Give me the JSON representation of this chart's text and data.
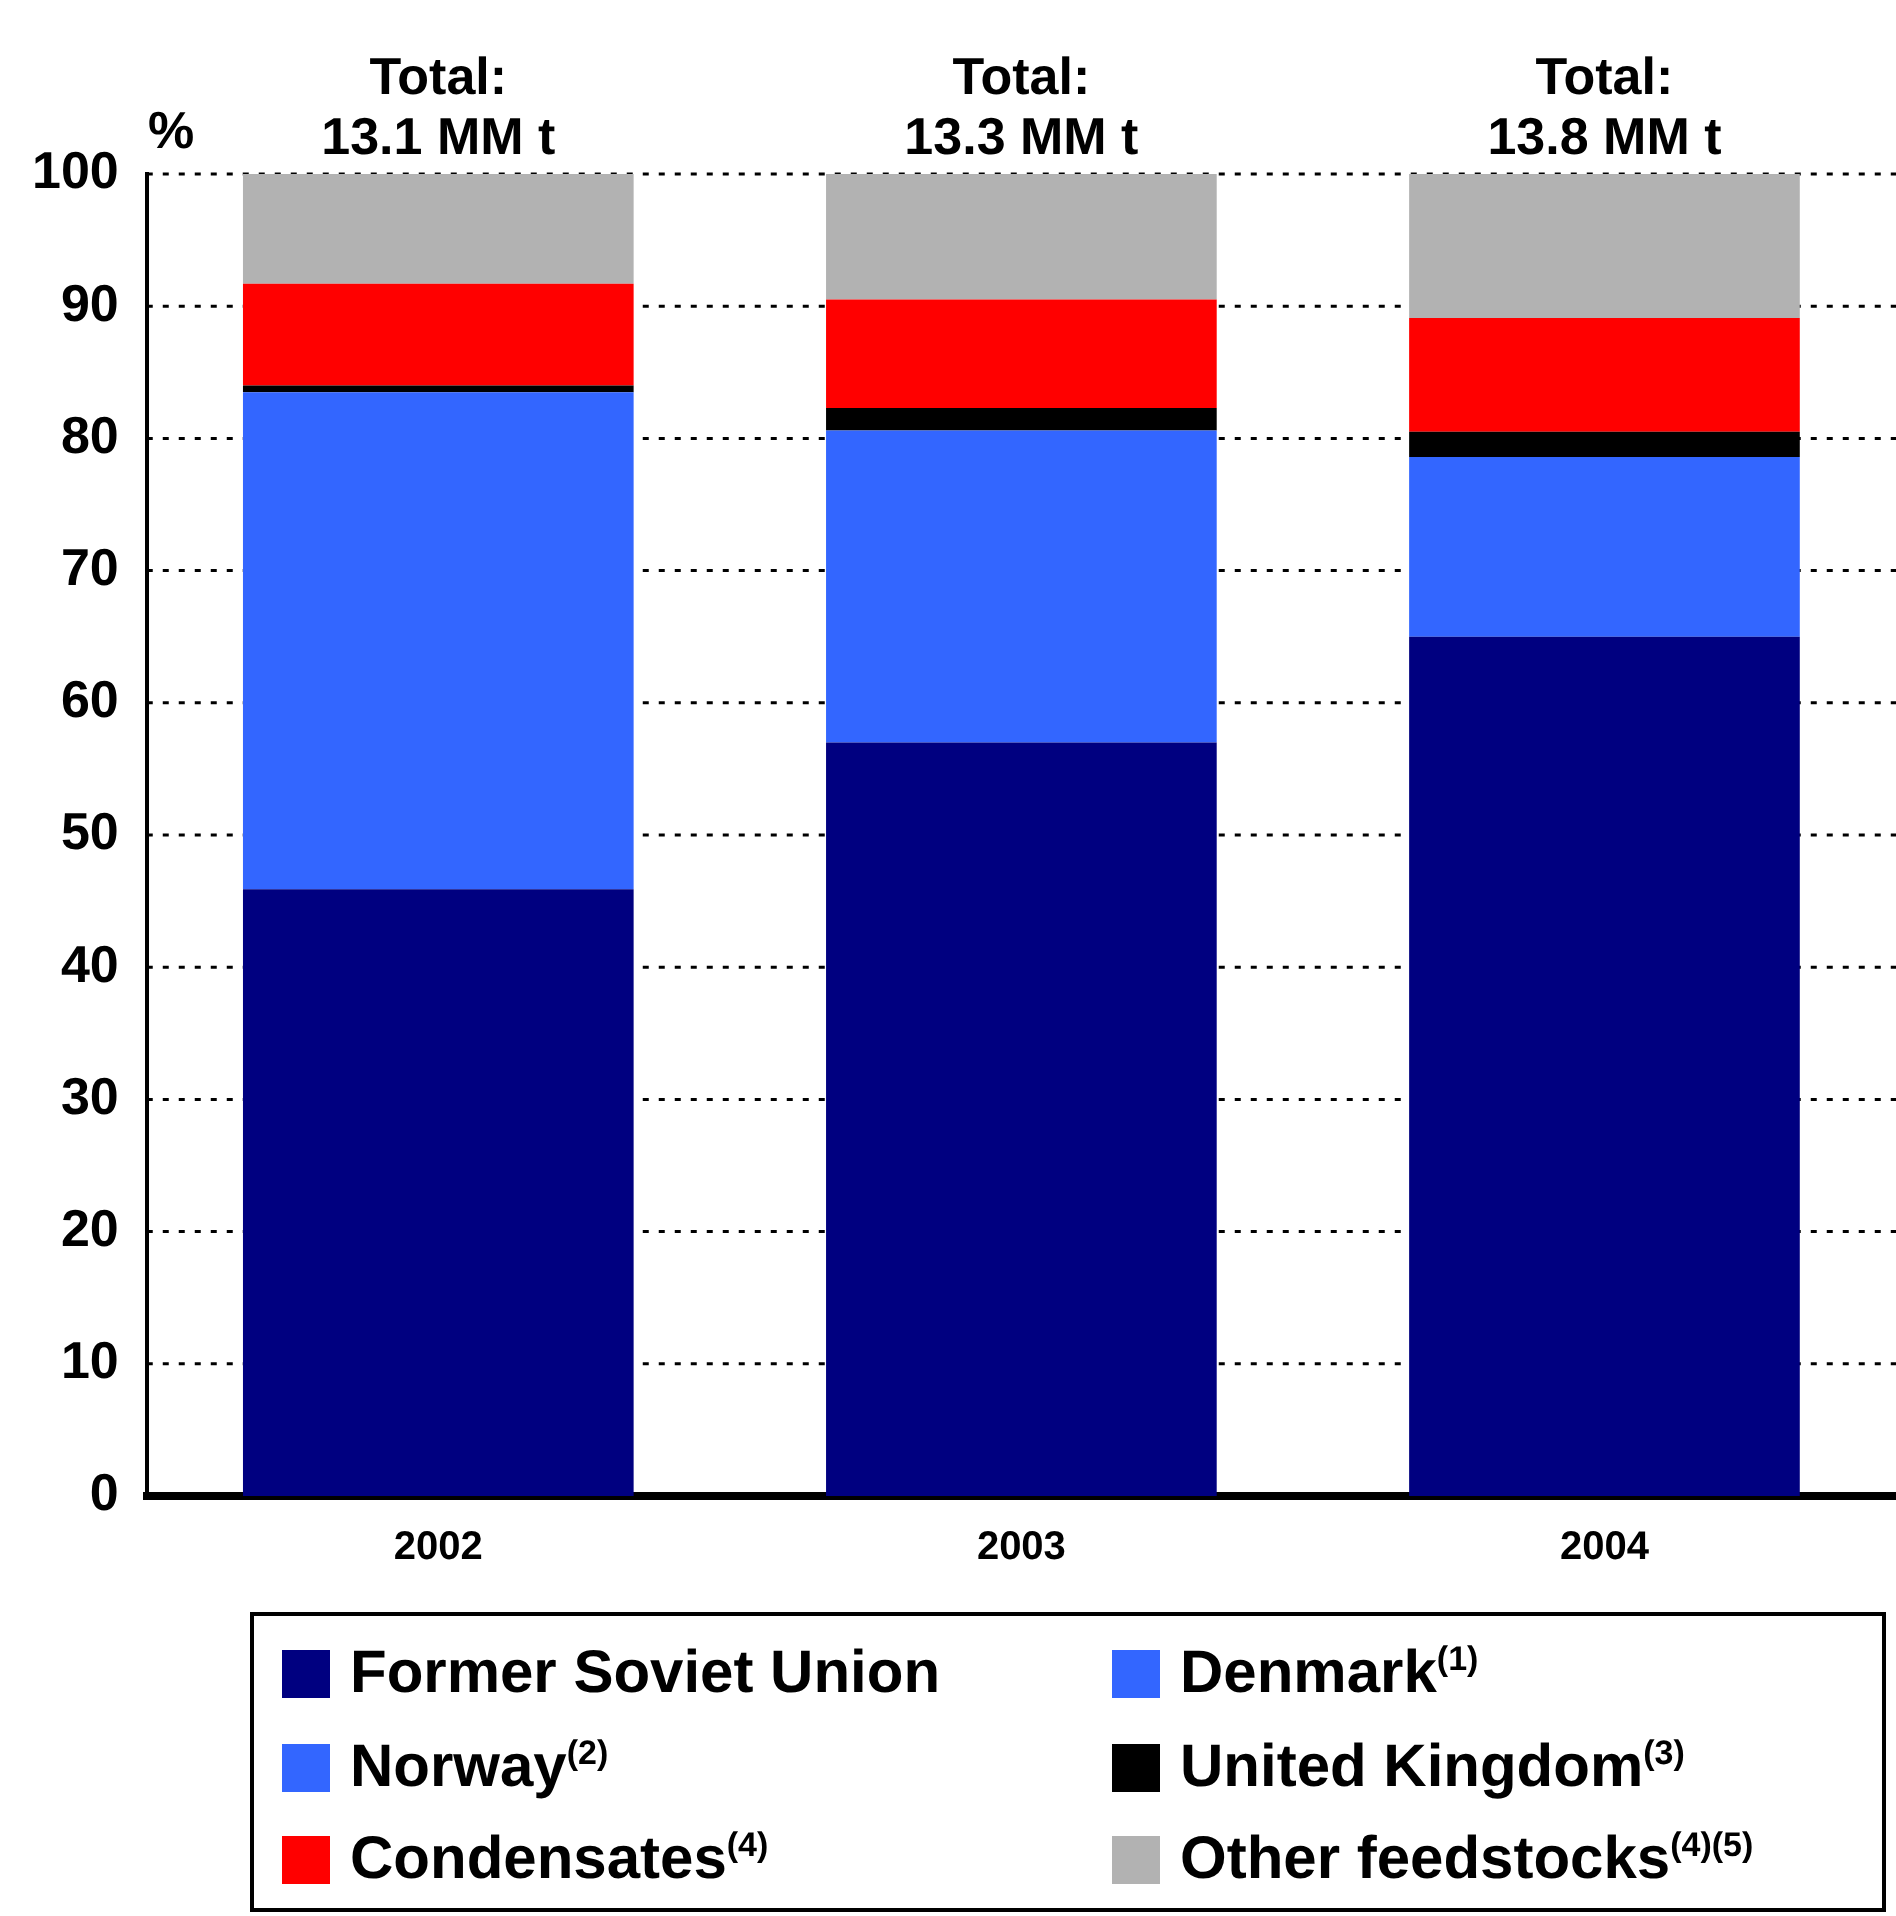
{
  "chart_data": {
    "type": "bar",
    "stacked": true,
    "ylabel": "%",
    "categories": [
      "2002",
      "2003",
      "2004"
    ],
    "series": [
      {
        "name": "Former Soviet Union",
        "color": "#000080",
        "values": [
          45.9,
          57.0,
          65.0
        ]
      },
      {
        "name": "Denmark$^{(1)}$",
        "color": "#3366ff",
        "values": [
          null,
          null,
          null
        ]
      },
      {
        "name": "Norway$^{(2)}$",
        "color": "#3366ff",
        "values": [
          37.6,
          23.6,
          13.6
        ]
      },
      {
        "name": "United Kingdom$^{(3)}$",
        "color": "#000000",
        "values": [
          0.5,
          1.7,
          1.9
        ]
      },
      {
        "name": "Condensates$^{(4)}$",
        "color": "#ff0000",
        "values": [
          7.7,
          8.2,
          8.6
        ]
      },
      {
        "name": "Other feedstocks$^{(4)(5)}$",
        "color": "#b2b2b2",
        "values": [
          8.3,
          9.5,
          10.9
        ]
      }
    ],
    "annotations": [
      {
        "text": "Total:\n13.1 MM t",
        "x": "2002",
        "y": 100
      },
      {
        "text": "Total:\n13.3 MM t",
        "x": "2003",
        "y": 100
      },
      {
        "text": "Total:\n13.8 MM t",
        "x": "2004",
        "y": 100
      }
    ],
    "ylim": [
      0,
      100
    ],
    "yticks": [
      0,
      10,
      20,
      30,
      40,
      50,
      60,
      70,
      80,
      90,
      100
    ],
    "grid": "y",
    "legend": "bottom"
  }
}
